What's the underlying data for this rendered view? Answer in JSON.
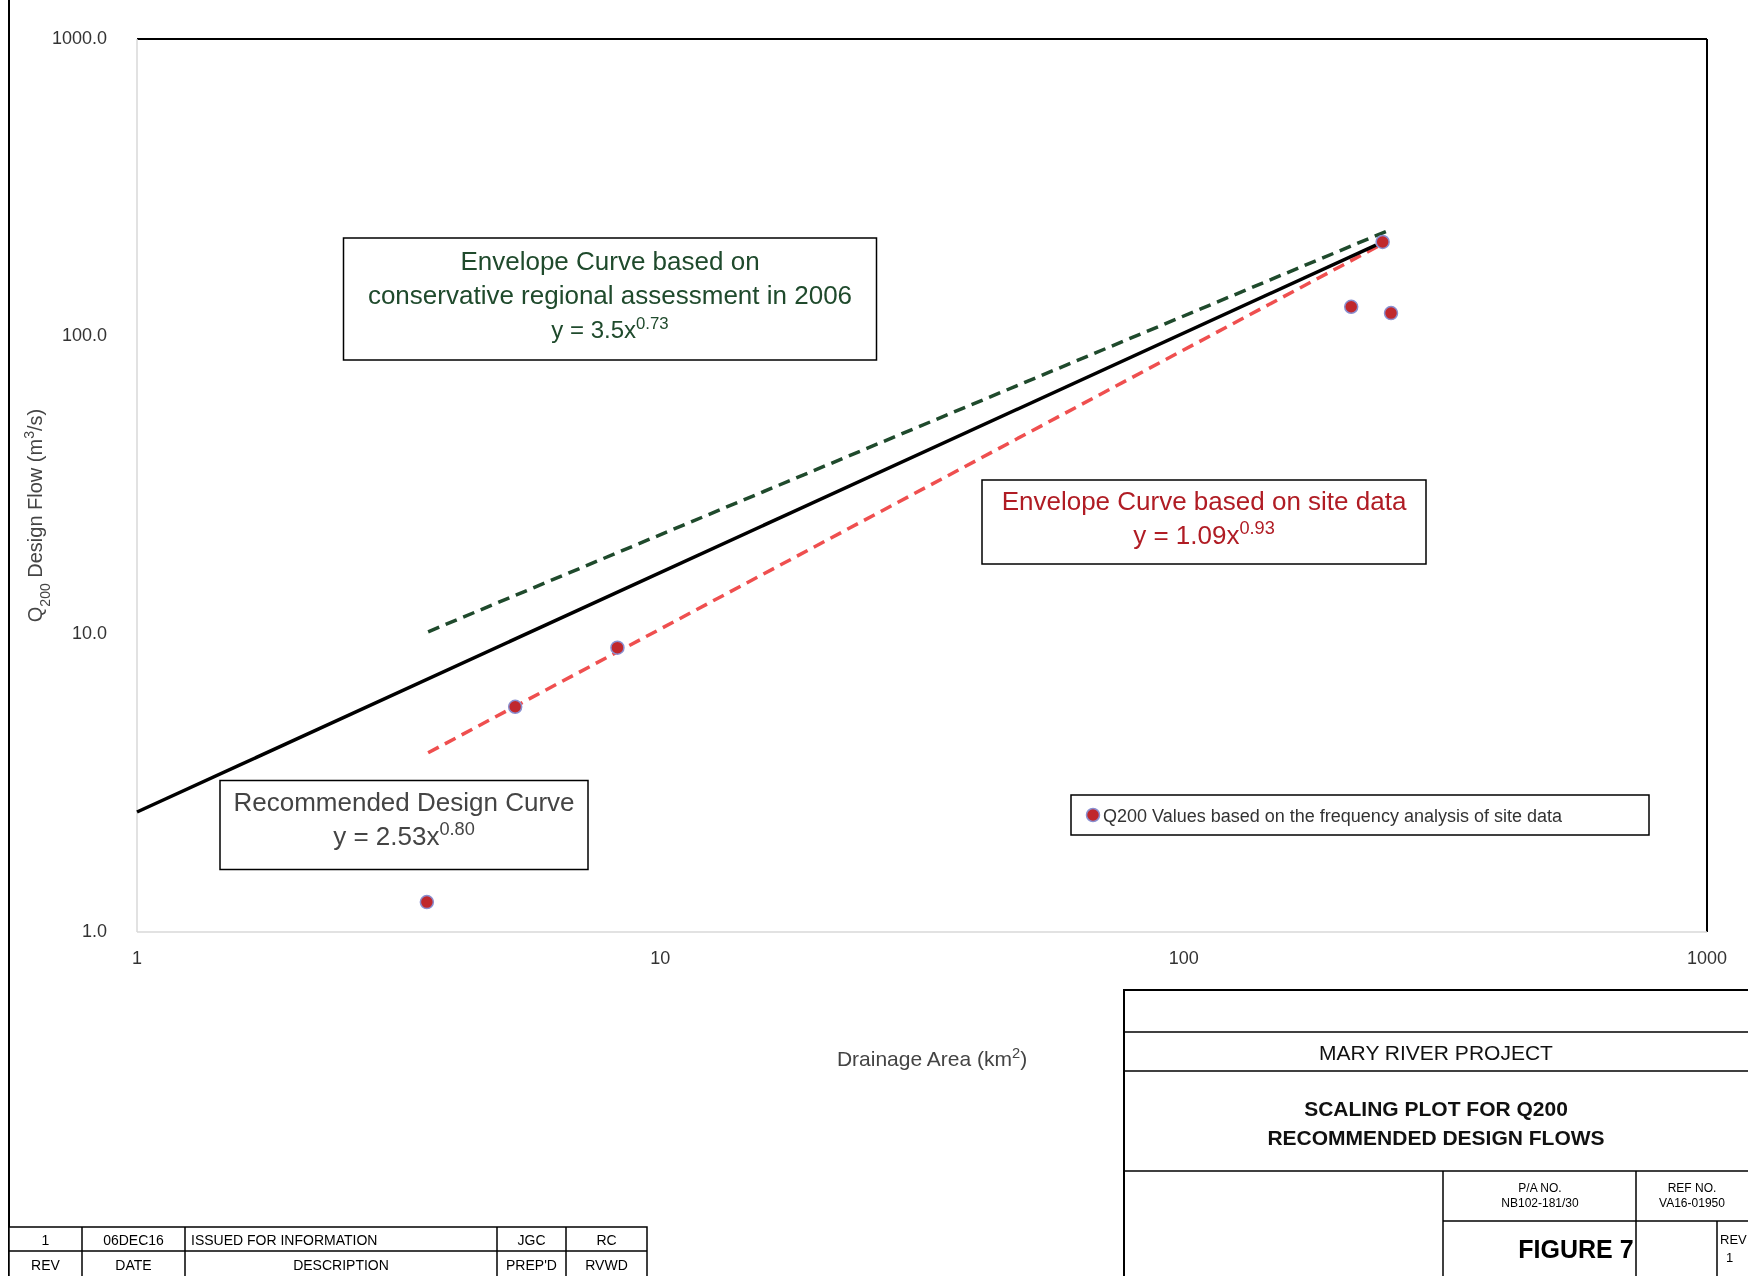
{
  "chart_data": {
    "type": "scatter",
    "title": "SCALING PLOT FOR Q200 RECOMMENDED DESIGN FLOWS",
    "subtitle": "MARY RIVER PROJECT",
    "xlabel": "Drainage Area (km$^{2}$)",
    "ylabel": "Q$_{200}$ Design Flow (m$^{3}$/s)",
    "log": "xy",
    "xlim": [
      1,
      1000
    ],
    "ylim": [
      1,
      1000
    ],
    "xticks": [
      1,
      10,
      100,
      1000
    ],
    "yticks": [
      {
        "value": 1,
        "label": "1.0"
      },
      {
        "value": 10,
        "label": "10.0"
      },
      {
        "value": 100,
        "label": "100.0"
      },
      {
        "value": 1000,
        "label": "1000.0"
      }
    ],
    "grid": false,
    "legend": "bottom right",
    "series": [
      {
        "type": "line",
        "color": "#1f4a2c",
        "line_style": "dashed",
        "x": [
          3.6,
          250
        ],
        "values": [
          10.2,
          230
        ]
      },
      {
        "type": "line",
        "color": "#ef4f4f",
        "line_style": "dashed",
        "x": [
          3.6,
          240
        ],
        "values": [
          4.0,
          205
        ]
      },
      {
        "type": "line",
        "color": "#000000",
        "line_style": "solid",
        "x": [
          1,
          233
        ],
        "values": [
          2.53,
          203
        ]
      },
      {
        "name": "Q200 Values based on the frequency analysis of site data",
        "color": "#c0282d",
        "marker": "circle",
        "x": [
          3.58,
          5.28,
          8.28,
          209,
          240,
          249
        ],
        "values": [
          1.26,
          5.71,
          9.02,
          126,
          208,
          120
        ]
      }
    ],
    "annotations": [
      "Envelope Curve based on",
      "conservative regional assessment in 2006",
      "y = 3.5x$^{0.73}$",
      "Envelope Curve based on site data",
      "y = 1.09x$^{0.93}$",
      "Recommended Design Curve",
      "y = 2.53x$^{0.80}$",
      "P/A NO.",
      "NB102-181/30",
      "REF NO.",
      "VA16-01950",
      "FIGURE 7",
      "REV",
      "1",
      "1",
      "06DEC16",
      "ISSUED FOR INFORMATION",
      "JGC",
      "RC",
      "REV",
      "DATE",
      "DESCRIPTION",
      "PREP'D",
      "RVWD"
    ]
  }
}
